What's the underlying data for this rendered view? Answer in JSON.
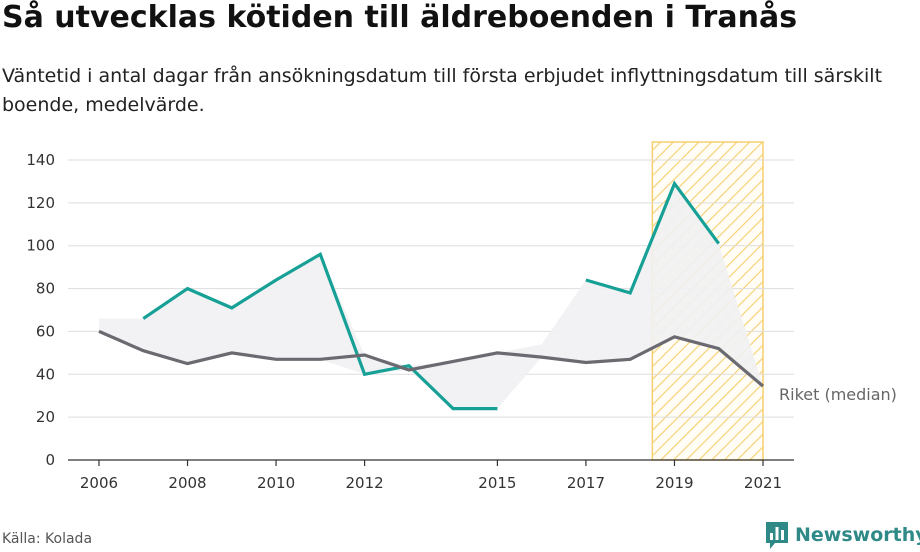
{
  "header": {
    "title": "Så utvecklas kötiden till äldreboenden i Tranås",
    "subtitle": "Väntetid i antal dagar från ansökningsdatum till första erbjudet inflyttningsdatum till särskilt boende, medelvärde."
  },
  "footer": {
    "source": "Källa: Kolada",
    "brand": "Newsworthy"
  },
  "colors": {
    "local_line": "#16a096",
    "national_line": "#6b6a70",
    "gap_fill": "#f1f1f3",
    "highlight_stripe": "#f6cf6e",
    "grid": "#dddddd",
    "axis": "#333333",
    "brand": "#2f8a87"
  },
  "icons": {
    "brand_logo": "bar-chart-speech-bubble-icon"
  },
  "chart_data": {
    "type": "line",
    "title": "Så utvecklas kötiden till äldreboenden i Tranås",
    "xlabel": "",
    "ylabel": "",
    "xlim": [
      2005.3,
      2021.7
    ],
    "ylim": [
      0,
      140
    ],
    "x_ticks": [
      2006,
      2008,
      2010,
      2012,
      2015,
      2017,
      2019,
      2021
    ],
    "y_ticks": [
      0,
      20,
      40,
      60,
      80,
      100,
      120,
      140
    ],
    "grid": true,
    "highlight_range": [
      2018.5,
      2021.0
    ],
    "national_label_text": "Riket (median)",
    "series": [
      {
        "key": "local",
        "points": [
          [
            2007,
            66
          ],
          [
            2008,
            80
          ],
          [
            2009,
            71
          ],
          [
            2010,
            84
          ],
          [
            2011,
            96
          ],
          [
            2012,
            40
          ],
          [
            2013,
            44
          ],
          [
            2014,
            24
          ],
          [
            2015,
            24
          ],
          [
            2016,
            null
          ],
          [
            2017,
            84
          ],
          [
            2018,
            78
          ],
          [
            2019,
            129
          ],
          [
            2020,
            101
          ]
        ]
      },
      {
        "key": "national",
        "name": "Riket (median)",
        "points": [
          [
            2006,
            60
          ],
          [
            2007,
            51
          ],
          [
            2008,
            45
          ],
          [
            2009,
            50
          ],
          [
            2010,
            47
          ],
          [
            2011,
            47
          ],
          [
            2012,
            49
          ],
          [
            2013,
            42
          ],
          [
            2014,
            46
          ],
          [
            2015,
            50
          ],
          [
            2016,
            48
          ],
          [
            2017,
            45.5
          ],
          [
            2018,
            47
          ],
          [
            2019,
            57.5
          ],
          [
            2020,
            52
          ],
          [
            2021,
            34.5
          ]
        ]
      }
    ]
  }
}
